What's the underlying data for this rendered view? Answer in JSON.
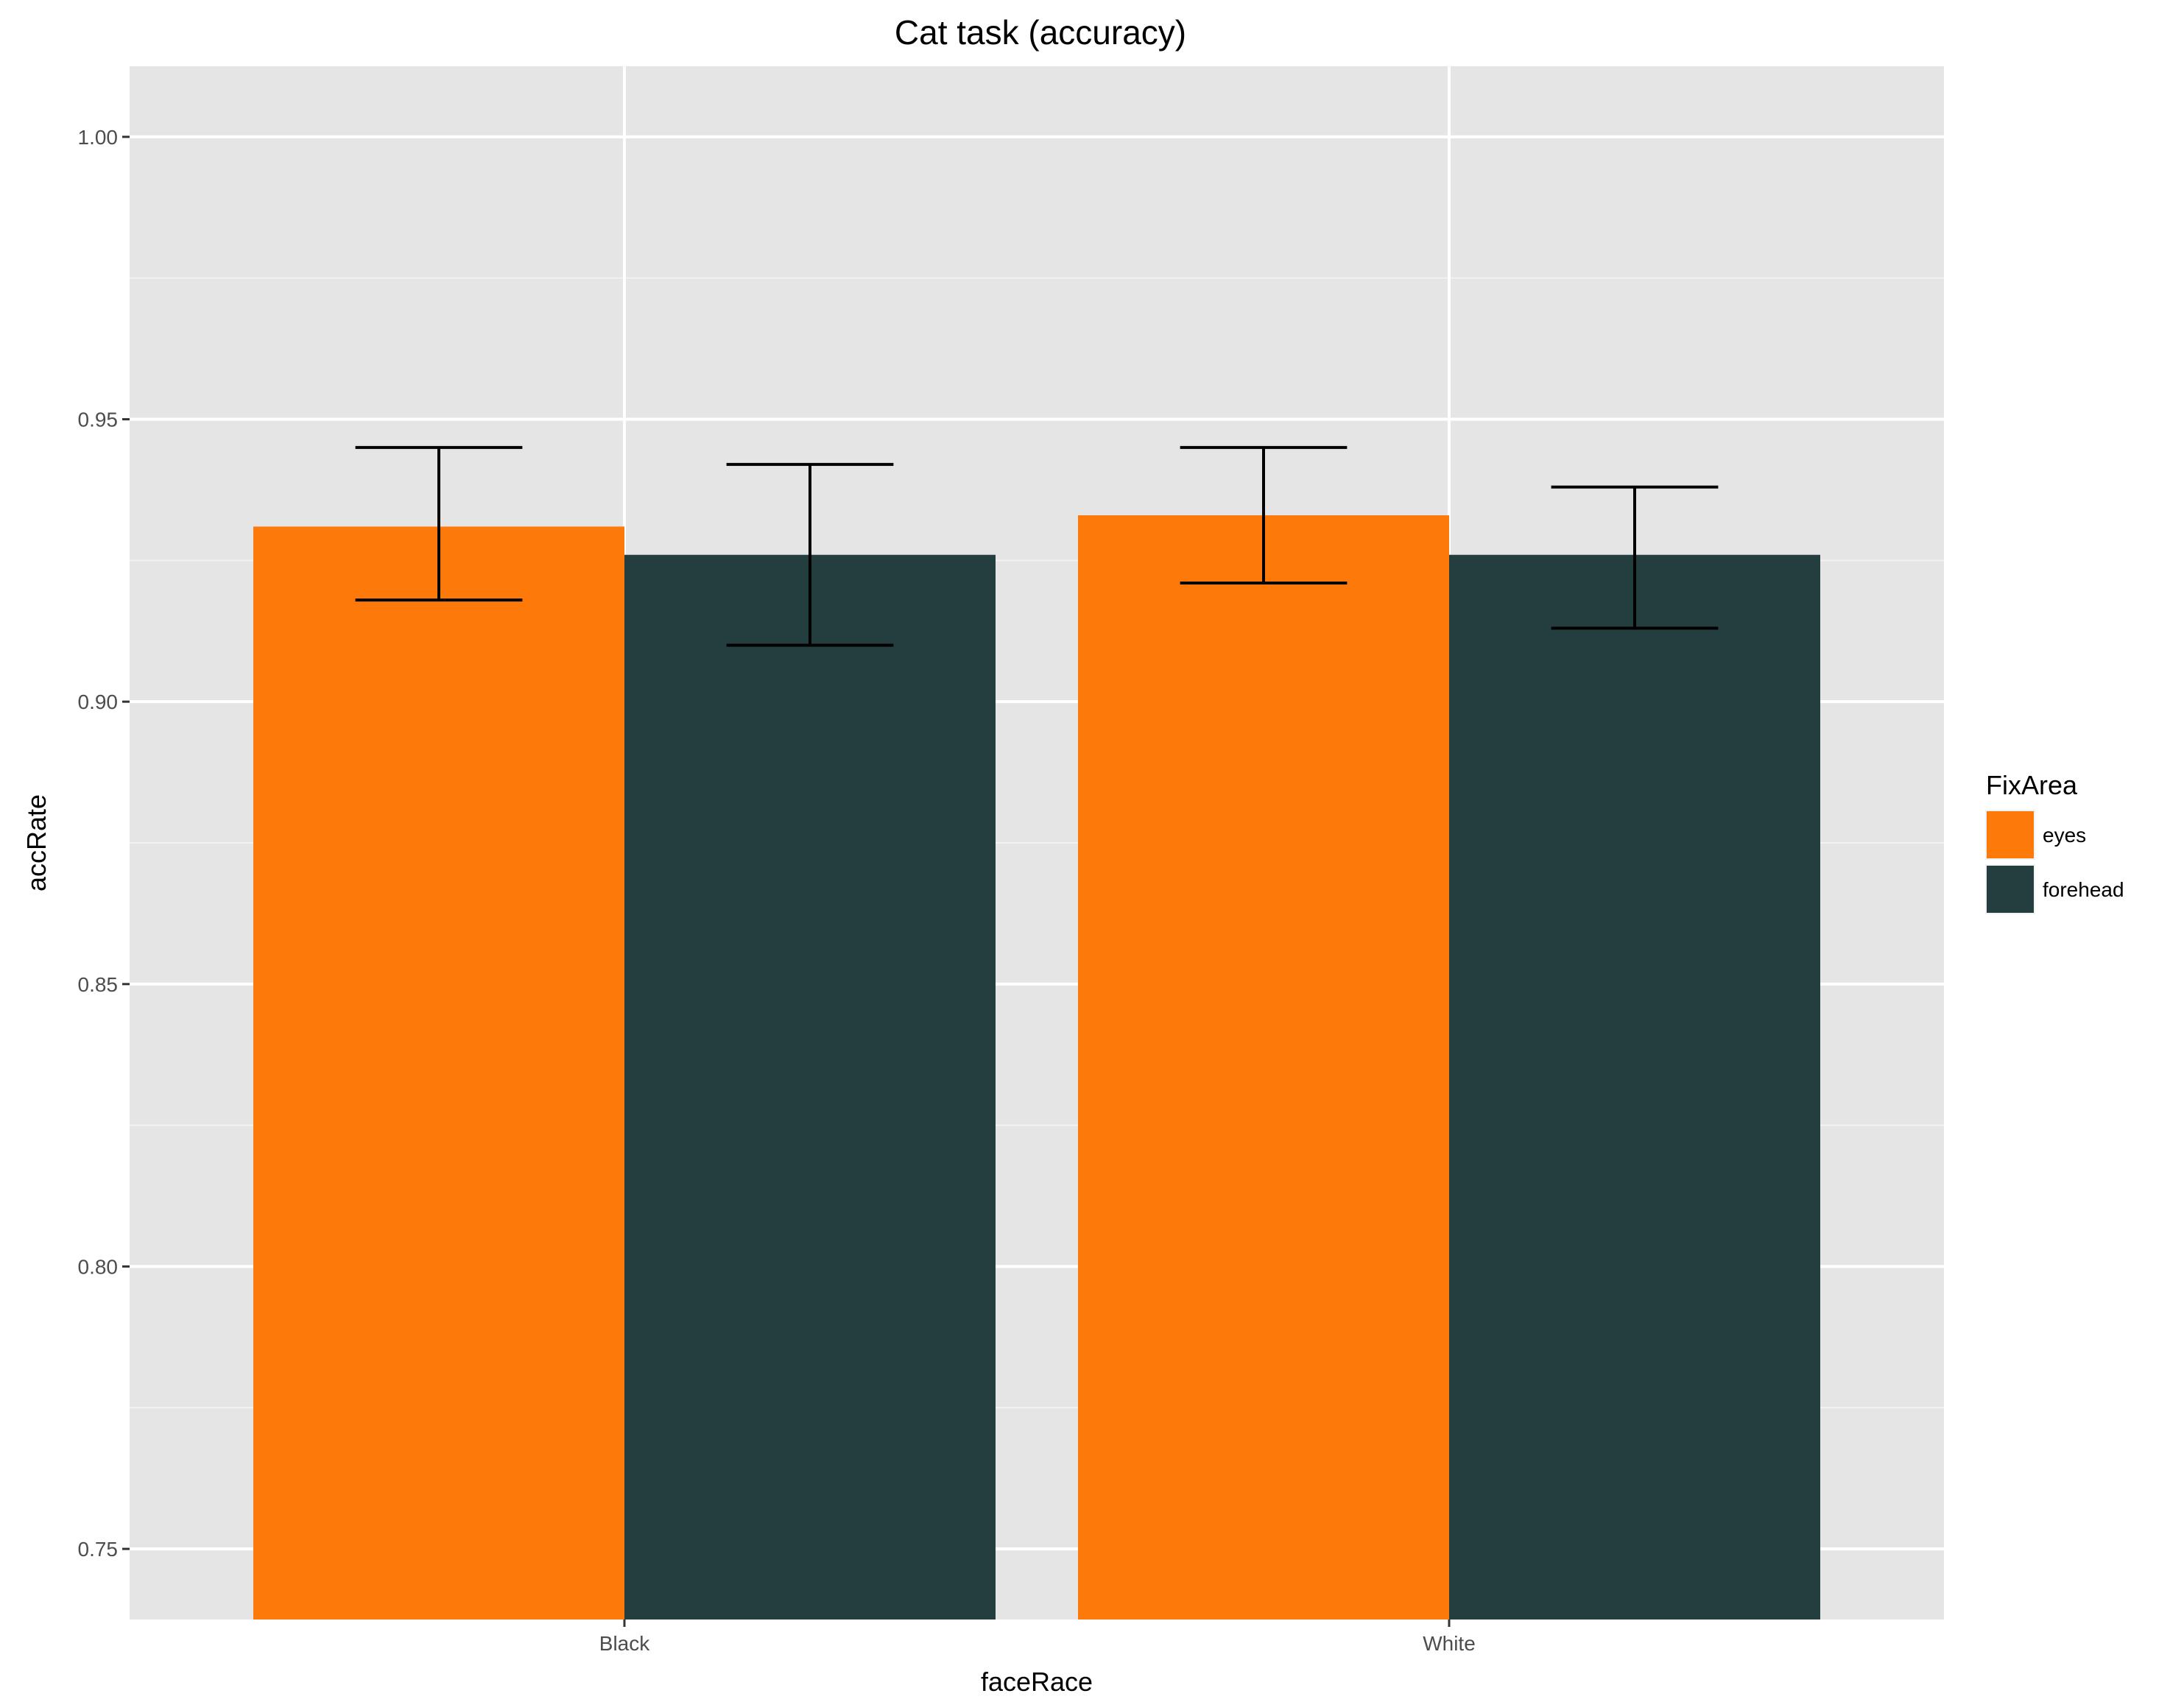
{
  "chart_data": {
    "type": "bar",
    "title": "Cat task (accuracy)",
    "xlabel": "faceRace",
    "ylabel": "accRate",
    "categories": [
      "Black",
      "White"
    ],
    "series": [
      {
        "name": "eyes",
        "color": "#FC790A",
        "values": [
          0.931,
          0.933
        ],
        "err_low": [
          0.918,
          0.921
        ],
        "err_high": [
          0.945,
          0.945
        ]
      },
      {
        "name": "forehead",
        "color": "#243E3F",
        "values": [
          0.926,
          0.926
        ],
        "err_low": [
          0.91,
          0.913
        ],
        "err_high": [
          0.942,
          0.938
        ]
      }
    ],
    "ylim": [
      0.7375,
      1.0125
    ],
    "yticks": [
      0.75,
      0.8,
      0.85,
      0.9,
      0.95,
      1.0
    ],
    "ytick_labels": [
      "0.75",
      "0.80",
      "0.85",
      "0.90",
      "0.95",
      "1.00"
    ],
    "legend": {
      "title": "FixArea",
      "position": "right"
    },
    "grid": true,
    "panel_color": "#E5E5E5"
  }
}
